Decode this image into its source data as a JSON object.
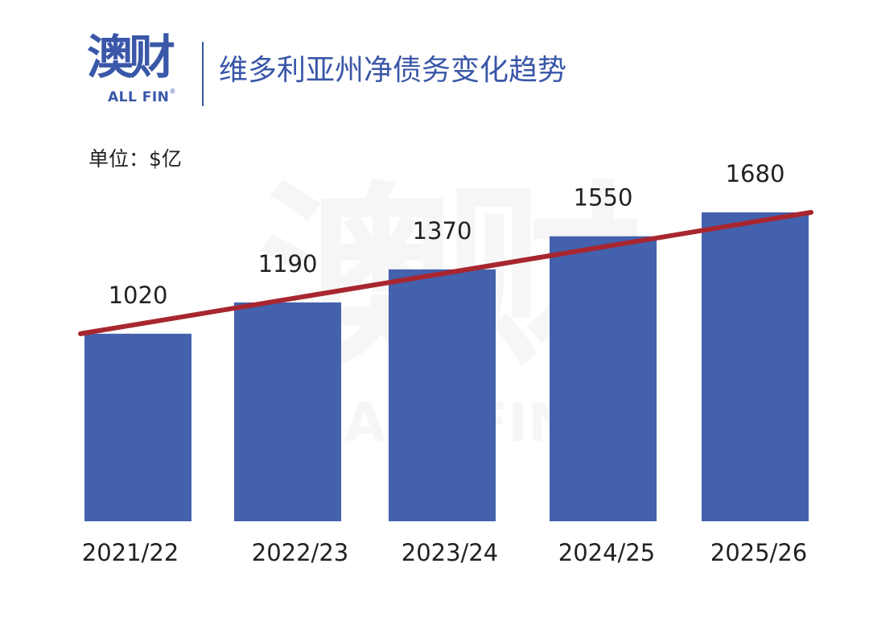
{
  "header": {
    "logo_cn": "澳财",
    "logo_en": "ALL FIN",
    "logo_mark": "®",
    "title": "维多利亚州净债务变化趋势"
  },
  "unit_label": "单位：$亿",
  "watermark": {
    "cn": "澳财",
    "en": "ALL FIN"
  },
  "colors": {
    "bar": "#4361ad",
    "trend_line": "#a8262f",
    "brand": "#3a57a8"
  },
  "chart_data": {
    "type": "bar",
    "title": "维多利亚州净债务变化趋势",
    "ylabel": "单位：$亿",
    "xlabel": "",
    "categories": [
      "2021/22",
      "2022/23",
      "2023/24",
      "2024/25",
      "2025/26"
    ],
    "values": [
      1020,
      1190,
      1370,
      1550,
      1680
    ],
    "data_labels": [
      "1020",
      "1190",
      "1370",
      "1550",
      "1680"
    ],
    "trend_line": {
      "shown": true,
      "style": "straight line from first to last bar top"
    },
    "ylim": [
      0,
      1680
    ],
    "grid": false,
    "y_axis_visible": false
  }
}
